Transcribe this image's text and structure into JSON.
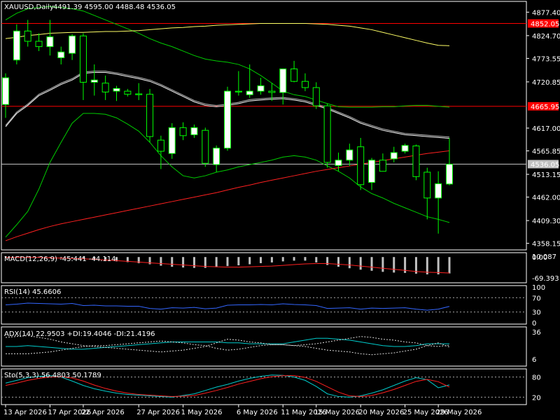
{
  "window": {
    "symbol_caption": "XAUUSD,Daily",
    "ohlc_caption": "4491.39 4595.00 4488.48 4536.05"
  },
  "colors": {
    "background": "#000000",
    "grid": "#ffffff",
    "bull_body": "#ffffff",
    "bear_body": "#000000",
    "candle_wick": "#00ff00",
    "ma_white": "#ffffff",
    "ma_yellow": "#ffff66",
    "ma_red": "#ff2020",
    "bollinger": "#00cc00",
    "hline_red": "#ff0000",
    "hline_gray": "#c0c0c0",
    "macd_signal": "#ff2020",
    "rsi_line": "#3366ff",
    "adx_line": "#00cccc",
    "sto_main": "#00cccc",
    "sto_signal": "#ff2020",
    "level_line": "#aaaaaa"
  },
  "price_axis": {
    "ticks": [
      "4877.40",
      "4824.70",
      "4773.55",
      "4720.85",
      "4617.00",
      "4565.85",
      "4513.15",
      "4462.00",
      "4409.30",
      "4358.15"
    ],
    "tick_values": [
      4877.4,
      4824.7,
      4773.55,
      4720.85,
      4617.0,
      4565.85,
      4513.15,
      4462.0,
      4409.3,
      4358.15
    ],
    "range": [
      4345,
      4900
    ]
  },
  "price_tags": [
    {
      "label": "4852.05",
      "value": 4852.05,
      "color": "#ff0000"
    },
    {
      "label": "4665.95",
      "value": 4665.95,
      "color": "#ff0000"
    },
    {
      "label": "4536.05",
      "value": 4536.05,
      "color": "#c0c0c0"
    }
  ],
  "date_axis": {
    "labels": [
      "13 Apr 2026",
      "17 Apr 2026",
      "22 Apr 2026",
      "27 Apr 2026",
      "1 May 2026",
      "6 May 2026",
      "11 May 2026",
      "15 May 2026",
      "20 May 2026",
      "25 May 2026",
      "29 May 2026"
    ],
    "label_bars": [
      0,
      4,
      7,
      12,
      16,
      21,
      25,
      28,
      32,
      36,
      39
    ]
  },
  "chart_data": [
    {
      "type": "candlestick",
      "title": "XAUUSD,Daily",
      "ylim": [
        4345,
        4900
      ],
      "bars": [
        {
          "o": 4670,
          "h": 4740,
          "l": 4640,
          "c": 4730
        },
        {
          "o": 4770,
          "h": 4850,
          "l": 4760,
          "c": 4835
        },
        {
          "o": 4835,
          "h": 4860,
          "l": 4800,
          "c": 4812
        },
        {
          "o": 4812,
          "h": 4830,
          "l": 4790,
          "c": 4800
        },
        {
          "o": 4800,
          "h": 4860,
          "l": 4780,
          "c": 4822
        },
        {
          "o": 4775,
          "h": 4800,
          "l": 4760,
          "c": 4788
        },
        {
          "o": 4785,
          "h": 4828,
          "l": 4770,
          "c": 4824
        },
        {
          "o": 4824,
          "h": 4830,
          "l": 4680,
          "c": 4720
        },
        {
          "o": 4720,
          "h": 4760,
          "l": 4690,
          "c": 4725
        },
        {
          "o": 4718,
          "h": 4735,
          "l": 4680,
          "c": 4698
        },
        {
          "o": 4700,
          "h": 4712,
          "l": 4678,
          "c": 4706
        },
        {
          "o": 4700,
          "h": 4705,
          "l": 4688,
          "c": 4693
        },
        {
          "o": 4694,
          "h": 4718,
          "l": 4680,
          "c": 4692
        },
        {
          "o": 4693,
          "h": 4705,
          "l": 4585,
          "c": 4598
        },
        {
          "o": 4590,
          "h": 4600,
          "l": 4525,
          "c": 4565
        },
        {
          "o": 4560,
          "h": 4628,
          "l": 4548,
          "c": 4618
        },
        {
          "o": 4618,
          "h": 4630,
          "l": 4590,
          "c": 4600
        },
        {
          "o": 4602,
          "h": 4625,
          "l": 4595,
          "c": 4618
        },
        {
          "o": 4612,
          "h": 4618,
          "l": 4530,
          "c": 4538
        },
        {
          "o": 4535,
          "h": 4578,
          "l": 4518,
          "c": 4572
        },
        {
          "o": 4572,
          "h": 4710,
          "l": 4566,
          "c": 4700
        },
        {
          "o": 4700,
          "h": 4745,
          "l": 4690,
          "c": 4698
        },
        {
          "o": 4692,
          "h": 4760,
          "l": 4685,
          "c": 4700
        },
        {
          "o": 4700,
          "h": 4730,
          "l": 4692,
          "c": 4712
        },
        {
          "o": 4700,
          "h": 4718,
          "l": 4678,
          "c": 4697
        },
        {
          "o": 4697,
          "h": 4750,
          "l": 4670,
          "c": 4750
        },
        {
          "o": 4750,
          "h": 4768,
          "l": 4720,
          "c": 4722
        },
        {
          "o": 4722,
          "h": 4740,
          "l": 4700,
          "c": 4708
        },
        {
          "o": 4708,
          "h": 4720,
          "l": 4660,
          "c": 4667
        },
        {
          "o": 4667,
          "h": 4672,
          "l": 4528,
          "c": 4540
        },
        {
          "o": 4533,
          "h": 4562,
          "l": 4520,
          "c": 4545
        },
        {
          "o": 4545,
          "h": 4582,
          "l": 4532,
          "c": 4568
        },
        {
          "o": 4575,
          "h": 4595,
          "l": 4478,
          "c": 4490
        },
        {
          "o": 4495,
          "h": 4550,
          "l": 4478,
          "c": 4545
        },
        {
          "o": 4545,
          "h": 4560,
          "l": 4520,
          "c": 4520
        },
        {
          "o": 4548,
          "h": 4575,
          "l": 4540,
          "c": 4562
        },
        {
          "o": 4565,
          "h": 4582,
          "l": 4560,
          "c": 4578
        },
        {
          "o": 4577,
          "h": 4580,
          "l": 4500,
          "c": 4508
        },
        {
          "o": 4518,
          "h": 4528,
          "l": 4412,
          "c": 4460
        },
        {
          "o": 4460,
          "h": 4520,
          "l": 4380,
          "c": 4492
        },
        {
          "o": 4491.39,
          "h": 4595.0,
          "l": 4488.48,
          "c": 4536.05
        }
      ],
      "overlays": {
        "ma_white": [
          4620,
          4650,
          4668,
          4690,
          4702,
          4715,
          4725,
          4740,
          4742,
          4742,
          4738,
          4733,
          4728,
          4722,
          4712,
          4700,
          4688,
          4676,
          4668,
          4665,
          4668,
          4672,
          4678,
          4680,
          4682,
          4683,
          4680,
          4676,
          4668,
          4660,
          4650,
          4640,
          4628,
          4620,
          4612,
          4607,
          4602,
          4600,
          4598,
          4596,
          4594
        ],
        "ma_yellow": [
          4818,
          4821,
          4825,
          4827,
          4830,
          4831,
          4832,
          4832,
          4833,
          4834,
          4834,
          4835,
          4836,
          4838,
          4840,
          4842,
          4843,
          4845,
          4846,
          4848,
          4849,
          4850,
          4851,
          4852,
          4852,
          4852,
          4852,
          4852,
          4851,
          4850,
          4848,
          4846,
          4842,
          4838,
          4832,
          4826,
          4820,
          4814,
          4808,
          4803,
          4802
        ],
        "ma_red": [
          4364,
          4373,
          4381,
          4389,
          4396,
          4402,
          4407,
          4412,
          4417,
          4422,
          4427,
          4432,
          4437,
          4442,
          4447,
          4452,
          4457,
          4462,
          4467,
          4472,
          4478,
          4484,
          4489,
          4495,
          4500,
          4505,
          4510,
          4515,
          4520,
          4524,
          4528,
          4532,
          4536,
          4540,
          4544,
          4548,
          4552,
          4556,
          4560,
          4563,
          4566
        ],
        "bb_upper": [
          4860,
          4875,
          4885,
          4888,
          4890,
          4888,
          4885,
          4880,
          4870,
          4860,
          4850,
          4840,
          4830,
          4818,
          4808,
          4800,
          4790,
          4780,
          4772,
          4768,
          4765,
          4760,
          4750,
          4735,
          4718,
          4700,
          4692,
          4688,
          4680,
          4672,
          4665,
          4664,
          4664,
          4664,
          4665,
          4665,
          4667,
          4668,
          4668,
          4666,
          4664
        ],
        "bb_mid": [
          4620,
          4650,
          4668,
          4690,
          4702,
          4715,
          4725,
          4740,
          4742,
          4742,
          4738,
          4733,
          4728,
          4722,
          4712,
          4700,
          4688,
          4676,
          4668,
          4665,
          4668,
          4672,
          4678,
          4680,
          4682,
          4683,
          4680,
          4676,
          4668,
          4660,
          4650,
          4640,
          4628,
          4620,
          4612,
          4607,
          4602,
          4600,
          4598,
          4596,
          4594
        ],
        "bb_lower": [
          4372,
          4400,
          4430,
          4480,
          4540,
          4585,
          4628,
          4650,
          4650,
          4648,
          4640,
          4626,
          4610,
          4585,
          4555,
          4530,
          4510,
          4505,
          4510,
          4518,
          4523,
          4530,
          4535,
          4540,
          4545,
          4552,
          4555,
          4552,
          4545,
          4532,
          4520,
          4505,
          4485,
          4470,
          4460,
          4448,
          4438,
          4428,
          4418,
          4412,
          4405
        ]
      },
      "hlines": [
        4852.05,
        4665.95,
        4536.05
      ]
    },
    {
      "type": "bar",
      "title": "MACD(12,26,9) -45.441 -44.114",
      "yticks": [
        "10.087",
        "0.00",
        "-69.393"
      ],
      "ylim": [
        -69.393,
        10.087
      ],
      "histogram": [
        2,
        2,
        2,
        1,
        0,
        -1,
        -3,
        -5,
        -8,
        -10,
        -12,
        -14,
        -17,
        -20,
        -24,
        -27,
        -29,
        -30,
        -30,
        -28,
        -25,
        -23,
        -20,
        -17,
        -15,
        -12,
        -10,
        -10,
        -15,
        -22,
        -27,
        -31,
        -35,
        -38,
        -41,
        -43,
        -44,
        -46,
        -48,
        -48,
        -45.441
      ],
      "signal": [
        -1,
        -1,
        -1,
        -1,
        -2,
        -3,
        -4,
        -5,
        -6,
        -8,
        -10,
        -12,
        -14,
        -16,
        -18,
        -20,
        -22,
        -24,
        -26,
        -27,
        -28,
        -28,
        -27,
        -26,
        -25,
        -23,
        -21,
        -19,
        -18,
        -18,
        -20,
        -22,
        -25,
        -28,
        -31,
        -34,
        -37,
        -40,
        -42,
        -43,
        -44.114
      ]
    },
    {
      "type": "line",
      "title": "RSI(14) 45.6606",
      "yticks": [
        "100",
        "70",
        "30",
        "0"
      ],
      "ylim": [
        0,
        100
      ],
      "levels": [
        70,
        30
      ],
      "values": [
        50,
        52,
        55,
        54,
        53,
        52,
        54,
        48,
        49,
        47,
        47,
        46,
        46,
        40,
        38,
        42,
        41,
        43,
        39,
        41,
        49,
        50,
        50,
        51,
        50,
        53,
        51,
        50,
        48,
        40,
        41,
        42,
        38,
        41,
        40,
        41,
        42,
        38,
        35,
        38,
        45.6606
      ]
    },
    {
      "type": "line",
      "title": "ADX(14) 22.9503 +DI:19.4046 -DI:21.4196",
      "yticks": [
        "36",
        "6"
      ],
      "ylim": [
        0,
        40
      ],
      "series": [
        {
          "name": "ADX",
          "values": [
            20,
            20,
            21,
            20,
            19,
            18,
            17,
            17,
            18,
            19,
            20,
            21,
            22,
            23,
            24,
            25,
            25,
            25,
            25,
            25,
            24,
            24,
            23,
            23,
            23,
            23,
            25,
            27,
            29,
            29,
            28,
            27,
            25,
            23,
            21,
            20,
            20,
            21,
            23,
            23,
            22.9503
          ]
        },
        {
          "name": "+DI",
          "values": [
            30,
            31,
            32,
            30,
            28,
            25,
            23,
            21,
            20,
            19,
            18,
            17,
            16,
            15,
            14,
            15,
            16,
            18,
            20,
            24,
            28,
            27,
            25,
            24,
            22,
            22,
            21,
            20,
            18,
            16,
            15,
            14,
            12,
            11,
            12,
            13,
            15,
            17,
            21,
            24,
            19.4046
          ]
        },
        {
          "name": "-DI",
          "values": [
            12,
            12,
            12,
            13,
            14,
            16,
            18,
            20,
            21,
            21,
            22,
            23,
            24,
            25,
            26,
            25,
            24,
            22,
            21,
            18,
            16,
            17,
            19,
            21,
            22,
            22,
            21,
            22,
            23,
            25,
            27,
            29,
            31,
            30,
            28,
            27,
            25,
            24,
            21,
            20,
            21.4196
          ]
        }
      ]
    },
    {
      "type": "line",
      "title": "Sto(5,3,3) 56.4803 50.1789",
      "yticks": [
        "80",
        "20"
      ],
      "ylim": [
        0,
        100
      ],
      "levels": [
        80,
        20
      ],
      "series": [
        {
          "name": "%K",
          "values": [
            62,
            70,
            78,
            82,
            84,
            80,
            68,
            55,
            45,
            38,
            32,
            28,
            26,
            24,
            22,
            20,
            25,
            30,
            40,
            50,
            58,
            68,
            76,
            82,
            86,
            85,
            80,
            70,
            52,
            30,
            22,
            20,
            24,
            32,
            42,
            55,
            68,
            78,
            72,
            48,
            56.4803
          ]
        },
        {
          "name": "%D",
          "values": [
            55,
            62,
            70,
            76,
            80,
            81,
            77,
            68,
            56,
            46,
            38,
            32,
            28,
            26,
            24,
            22,
            23,
            25,
            32,
            40,
            49,
            59,
            67,
            75,
            81,
            84,
            84,
            79,
            67,
            51,
            35,
            24,
            22,
            25,
            33,
            43,
            55,
            67,
            73,
            66,
            50.1789
          ]
        }
      ]
    }
  ]
}
